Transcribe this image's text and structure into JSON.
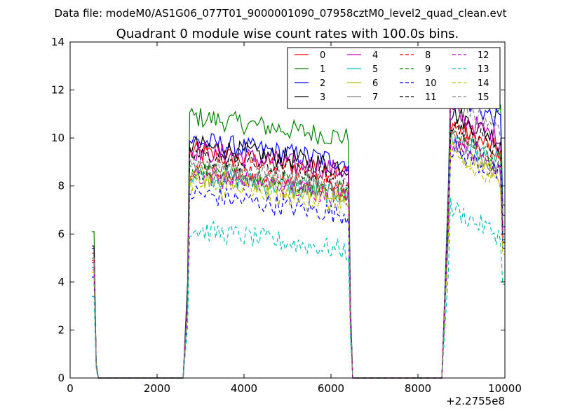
{
  "chart_data": {
    "type": "line",
    "suptitle": "Data file: modeM0/AS1G06_077T01_9000001090_07958cztM0_level2_quad_clean.evt",
    "title": "Quadrant 0 module wise count rates with 100.0s bins.",
    "xlabel": "",
    "ylabel": "",
    "xlim": [
      0,
      10000
    ],
    "ylim": [
      0,
      14
    ],
    "x_offset_label": "+2.2755e8",
    "xticks": [
      "0",
      "2000",
      "4000",
      "6000",
      "8000",
      "10000"
    ],
    "yticks": [
      "0",
      "2",
      "4",
      "6",
      "8",
      "10",
      "12",
      "14"
    ],
    "legend_position": "upper-right",
    "segments": [
      [
        500,
        600
      ],
      [
        2600,
        6500
      ],
      [
        8550,
        10000
      ]
    ],
    "series": [
      {
        "name": "0",
        "color": "#ff0000",
        "dash": "solid",
        "level": [
          5.2,
          8.5,
          10.0
        ]
      },
      {
        "name": "1",
        "color": "#008000",
        "dash": "solid",
        "level": [
          6.1,
          10.0,
          12.0
        ]
      },
      {
        "name": "2",
        "color": "#0000ff",
        "dash": "solid",
        "level": [
          5.4,
          9.0,
          11.3
        ]
      },
      {
        "name": "3",
        "color": "#000000",
        "dash": "solid",
        "level": [
          5.5,
          8.8,
          10.5
        ]
      },
      {
        "name": "4",
        "color": "#bf00bf",
        "dash": "solid",
        "level": [
          5.0,
          8.6,
          10.5
        ]
      },
      {
        "name": "5",
        "color": "#00bfbf",
        "dash": "solid",
        "level": [
          4.6,
          7.6,
          9.5
        ]
      },
      {
        "name": "6",
        "color": "#bfbf00",
        "dash": "solid",
        "level": [
          4.5,
          7.5,
          9.0
        ]
      },
      {
        "name": "7",
        "color": "#808080",
        "dash": "solid",
        "level": [
          4.8,
          7.8,
          9.4
        ]
      },
      {
        "name": "8",
        "color": "#ff0000",
        "dash": "dashed",
        "level": [
          4.9,
          7.9,
          9.8
        ]
      },
      {
        "name": "9",
        "color": "#008000",
        "dash": "dashed",
        "level": [
          4.8,
          7.8,
          9.6
        ]
      },
      {
        "name": "10",
        "color": "#0000ff",
        "dash": "dashed",
        "level": [
          4.2,
          6.8,
          9.0
        ]
      },
      {
        "name": "11",
        "color": "#000000",
        "dash": "dashed",
        "level": [
          5.0,
          8.4,
          10.1
        ]
      },
      {
        "name": "12",
        "color": "#bf00bf",
        "dash": "dashed",
        "level": [
          4.8,
          7.6,
          9.4
        ]
      },
      {
        "name": "13",
        "color": "#00bfbf",
        "dash": "dashed",
        "level": [
          3.4,
          5.3,
          6.5
        ]
      },
      {
        "name": "14",
        "color": "#bfbf00",
        "dash": "dashed",
        "level": [
          4.4,
          7.2,
          8.6
        ]
      },
      {
        "name": "15",
        "color": "#808080",
        "dash": "dashed",
        "level": [
          5.0,
          8.0,
          11.0
        ]
      }
    ]
  }
}
